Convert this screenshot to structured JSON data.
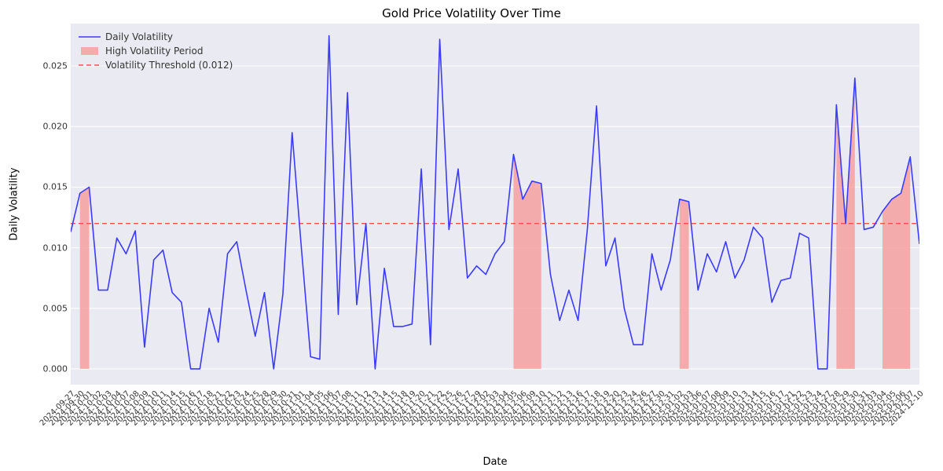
{
  "chart": {
    "type": "line",
    "title": "Gold Price Volatility Over Time",
    "title_fontsize": 15,
    "xlabel": "Date",
    "ylabel": "Daily Volatility",
    "label_fontsize": 13,
    "tick_fontsize": 11,
    "background_color": "#ffffff",
    "plot_background_color": "#eaeaf2",
    "grid_color": "#ffffff",
    "grid_linewidth": 1,
    "line_color": "#3b3bff",
    "line_width": 1.6,
    "threshold_value": 0.012,
    "threshold_color": "#ef5350",
    "threshold_dash": "6,4",
    "threshold_width": 1.4,
    "shade_color": "#f5a0a0",
    "shade_alpha": 0.85,
    "ylim": [
      -0.0013,
      0.0285
    ],
    "yticks": [
      0.0,
      0.005,
      0.01,
      0.015,
      0.02,
      0.025
    ],
    "ytick_labels": [
      "0.000",
      "0.005",
      "0.010",
      "0.015",
      "0.020",
      "0.025"
    ],
    "dates": [
      "2024-09-27",
      "2024-09-30",
      "2024-10-01",
      "2024-10-02",
      "2024-10-03",
      "2024-10-04",
      "2024-10-07",
      "2024-10-08",
      "2024-10-09",
      "2024-10-10",
      "2024-10-11",
      "2024-10-14",
      "2024-10-15",
      "2024-10-16",
      "2024-10-17",
      "2024-10-18",
      "2024-10-21",
      "2024-10-22",
      "2024-10-23",
      "2024-10-24",
      "2024-10-25",
      "2024-10-28",
      "2024-10-29",
      "2024-10-30",
      "2024-10-31",
      "2024-11-01",
      "2024-11-04",
      "2024-11-05",
      "2024-11-06",
      "2024-11-07",
      "2024-11-08",
      "2024-11-11",
      "2024-11-12",
      "2024-11-13",
      "2024-11-14",
      "2024-11-15",
      "2024-11-18",
      "2024-11-19",
      "2024-11-20",
      "2024-11-21",
      "2024-11-22",
      "2024-11-25",
      "2024-11-26",
      "2024-11-27",
      "2024-11-29",
      "2024-12-02",
      "2024-12-03",
      "2024-12-04",
      "2024-12-05",
      "2024-12-06",
      "2024-12-09",
      "2024-12-10",
      "2024-12-11",
      "2024-12-12",
      "2024-12-13",
      "2024-12-16",
      "2024-12-17",
      "2024-12-18",
      "2024-12-19",
      "2024-12-20",
      "2024-12-23",
      "2024-12-24",
      "2024-12-26",
      "2024-12-27",
      "2024-12-30",
      "2024-12-31",
      "2025-01-02",
      "2025-01-03",
      "2025-01-06",
      "2025-01-07",
      "2025-01-08",
      "2025-01-09",
      "2025-01-10",
      "2025-01-13",
      "2025-01-14",
      "2025-01-15",
      "2025-01-16",
      "2025-01-17",
      "2025-01-21",
      "2025-01-22",
      "2025-01-23",
      "2025-01-24",
      "2025-01-27",
      "2025-01-28",
      "2025-01-29",
      "2025-01-30",
      "2025-01-31",
      "2025-02-03",
      "2025-02-04",
      "2025-02-05",
      "2025-02-06",
      "2025-02-07",
      "2024-12-10"
    ],
    "values": [
      0.0113,
      0.0145,
      0.015,
      0.0065,
      0.0065,
      0.0108,
      0.0095,
      0.0114,
      0.0018,
      0.009,
      0.0098,
      0.0063,
      0.0055,
      0.0,
      0.0,
      0.005,
      0.0022,
      0.0095,
      0.0105,
      0.0065,
      0.0027,
      0.0063,
      0.0,
      0.0062,
      0.0195,
      0.01,
      0.001,
      0.0008,
      0.0275,
      0.0045,
      0.0228,
      0.0053,
      0.012,
      0.0,
      0.0083,
      0.0035,
      0.0035,
      0.0037,
      0.0165,
      0.002,
      0.0272,
      0.0115,
      0.0165,
      0.0075,
      0.0085,
      0.0078,
      0.0095,
      0.0105,
      0.0177,
      0.014,
      0.0155,
      0.0153,
      0.0078,
      0.004,
      0.0065,
      0.004,
      0.0115,
      0.0217,
      0.0085,
      0.0108,
      0.005,
      0.002,
      0.002,
      0.0095,
      0.0065,
      0.009,
      0.014,
      0.0138,
      0.0065,
      0.0095,
      0.008,
      0.0105,
      0.0075,
      0.009,
      0.0117,
      0.0108,
      0.0055,
      0.0073,
      0.0075,
      0.0112,
      0.0108,
      0.0,
      0.0,
      0.0218,
      0.012,
      0.024,
      0.0115,
      0.0117,
      0.013,
      0.014,
      0.0145,
      0.0175,
      0.0103
    ],
    "high_volatility_spans": [
      [
        1,
        2
      ],
      [
        48,
        51
      ],
      [
        66,
        67
      ],
      [
        83,
        85
      ],
      [
        88,
        91
      ]
    ],
    "legend": {
      "items": [
        {
          "label": "Daily Volatility",
          "type": "line",
          "color": "#3b3bff"
        },
        {
          "label": "High Volatility Period",
          "type": "patch",
          "color": "#f5a0a0"
        },
        {
          "label": "Volatility Threshold (0.012)",
          "type": "dash",
          "color": "#ef5350"
        }
      ]
    }
  }
}
